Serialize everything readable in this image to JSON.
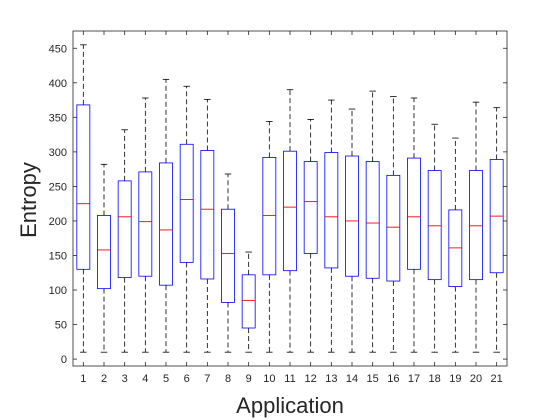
{
  "chart_data": {
    "type": "box",
    "xlabel": "Application",
    "ylabel": "Entropy",
    "ylim": [
      -10,
      475
    ],
    "yticks": [
      0,
      50,
      100,
      150,
      200,
      250,
      300,
      350,
      400,
      450
    ],
    "grid": false,
    "categories": [
      "1",
      "2",
      "3",
      "4",
      "5",
      "6",
      "7",
      "8",
      "9",
      "10",
      "11",
      "12",
      "13",
      "14",
      "15",
      "16",
      "17",
      "18",
      "19",
      "20",
      "21"
    ],
    "boxes": [
      {
        "label": "1",
        "min": 10,
        "q1": 130,
        "median": 225,
        "q3": 368,
        "max": 455
      },
      {
        "label": "2",
        "min": 10,
        "q1": 102,
        "median": 158,
        "q3": 208,
        "max": 282
      },
      {
        "label": "3",
        "min": 10,
        "q1": 118,
        "median": 206,
        "q3": 258,
        "max": 332
      },
      {
        "label": "4",
        "min": 10,
        "q1": 120,
        "median": 199,
        "q3": 271,
        "max": 378
      },
      {
        "label": "5",
        "min": 10,
        "q1": 107,
        "median": 187,
        "q3": 284,
        "max": 405
      },
      {
        "label": "6",
        "min": 10,
        "q1": 140,
        "median": 231,
        "q3": 311,
        "max": 395
      },
      {
        "label": "7",
        "min": 10,
        "q1": 116,
        "median": 217,
        "q3": 302,
        "max": 376
      },
      {
        "label": "8",
        "min": 10,
        "q1": 82,
        "median": 153,
        "q3": 217,
        "max": 268
      },
      {
        "label": "9",
        "min": 10,
        "q1": 45,
        "median": 85,
        "q3": 122,
        "max": 155
      },
      {
        "label": "10",
        "min": 10,
        "q1": 122,
        "median": 208,
        "q3": 292,
        "max": 344
      },
      {
        "label": "11",
        "min": 10,
        "q1": 128,
        "median": 220,
        "q3": 301,
        "max": 390
      },
      {
        "label": "12",
        "min": 10,
        "q1": 153,
        "median": 228,
        "q3": 286,
        "max": 347
      },
      {
        "label": "13",
        "min": 10,
        "q1": 132,
        "median": 206,
        "q3": 299,
        "max": 375
      },
      {
        "label": "14",
        "min": 10,
        "q1": 120,
        "median": 200,
        "q3": 294,
        "max": 362
      },
      {
        "label": "15",
        "min": 10,
        "q1": 117,
        "median": 197,
        "q3": 286,
        "max": 388
      },
      {
        "label": "16",
        "min": 10,
        "q1": 113,
        "median": 191,
        "q3": 266,
        "max": 380
      },
      {
        "label": "17",
        "min": 10,
        "q1": 130,
        "median": 206,
        "q3": 291,
        "max": 378
      },
      {
        "label": "18",
        "min": 10,
        "q1": 115,
        "median": 193,
        "q3": 273,
        "max": 340
      },
      {
        "label": "19",
        "min": 10,
        "q1": 105,
        "median": 161,
        "q3": 216,
        "max": 320
      },
      {
        "label": "20",
        "min": 10,
        "q1": 115,
        "median": 193,
        "q3": 273,
        "max": 372
      },
      {
        "label": "21",
        "min": 10,
        "q1": 125,
        "median": 207,
        "q3": 289,
        "max": 364
      }
    ],
    "colors": {
      "box": "#0000ff",
      "median": "#ff0000",
      "whisker": "#000000",
      "axis": "#262626",
      "background": "#ffffff"
    }
  }
}
